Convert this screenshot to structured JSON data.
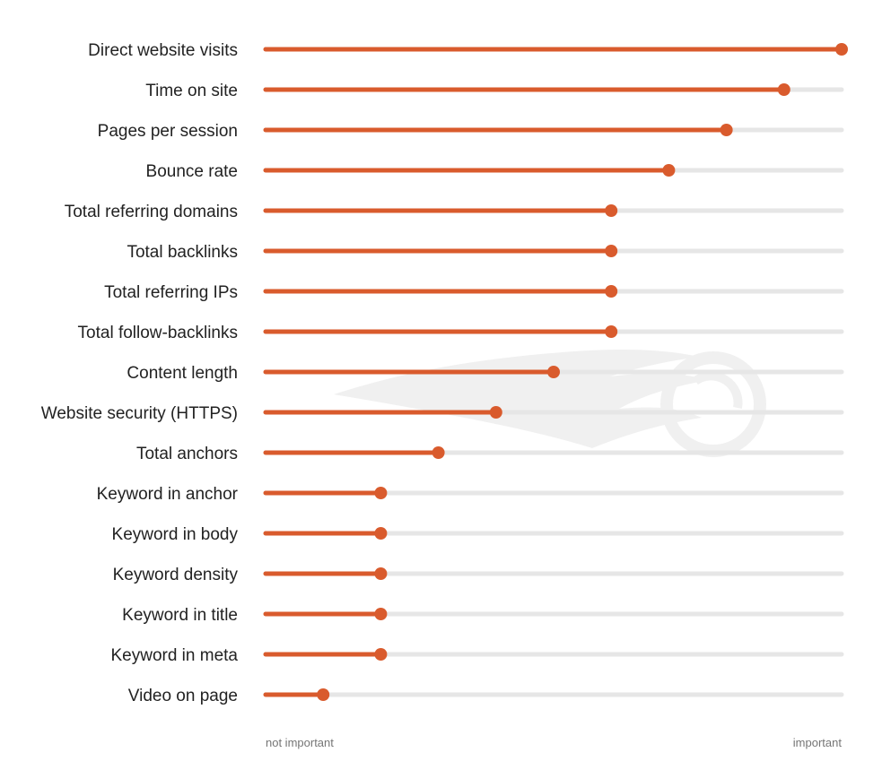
{
  "chart_data": {
    "type": "dot-bar",
    "orientation": "horizontal",
    "title": "",
    "xlabel": "",
    "ylabel": "",
    "axis_ends": {
      "min_label": "not important",
      "max_label": "important"
    },
    "xlim": [
      0,
      100
    ],
    "grid": false,
    "colors": {
      "accent": "#d95b2d",
      "track": "#e6e6e6",
      "text": "#222222",
      "muted": "#757575",
      "watermark": "#f0f0f0"
    },
    "categories": [
      "Direct website visits",
      "Time on site",
      "Pages per session",
      "Bounce rate",
      "Total referring domains",
      "Total backlinks",
      "Total referring IPs",
      "Total follow-backlinks",
      "Content length",
      "Website security (HTTPS)",
      "Total anchors",
      "Keyword in anchor",
      "Keyword in body",
      "Keyword density",
      "Keyword in title",
      "Keyword in meta",
      "Video on page"
    ],
    "values": [
      100,
      90,
      80,
      70,
      60,
      60,
      60,
      60,
      50,
      40,
      30,
      20,
      20,
      20,
      20,
      20,
      10
    ]
  },
  "watermark": {
    "icon": "flame-logo-icon"
  }
}
